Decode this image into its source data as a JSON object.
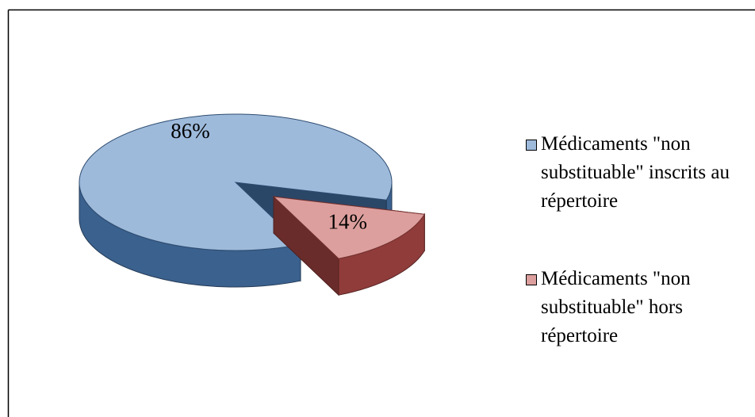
{
  "chart_data": {
    "type": "pie",
    "categories": [
      "Médicaments \"non substituable\" inscrits au répertoire",
      "Médicaments \"non substituable\" hors répertoire"
    ],
    "values": [
      86,
      14
    ],
    "value_labels": [
      "86%",
      "14%"
    ],
    "colors": [
      "#4f81bd",
      "#c0504d"
    ],
    "legend": "right"
  }
}
